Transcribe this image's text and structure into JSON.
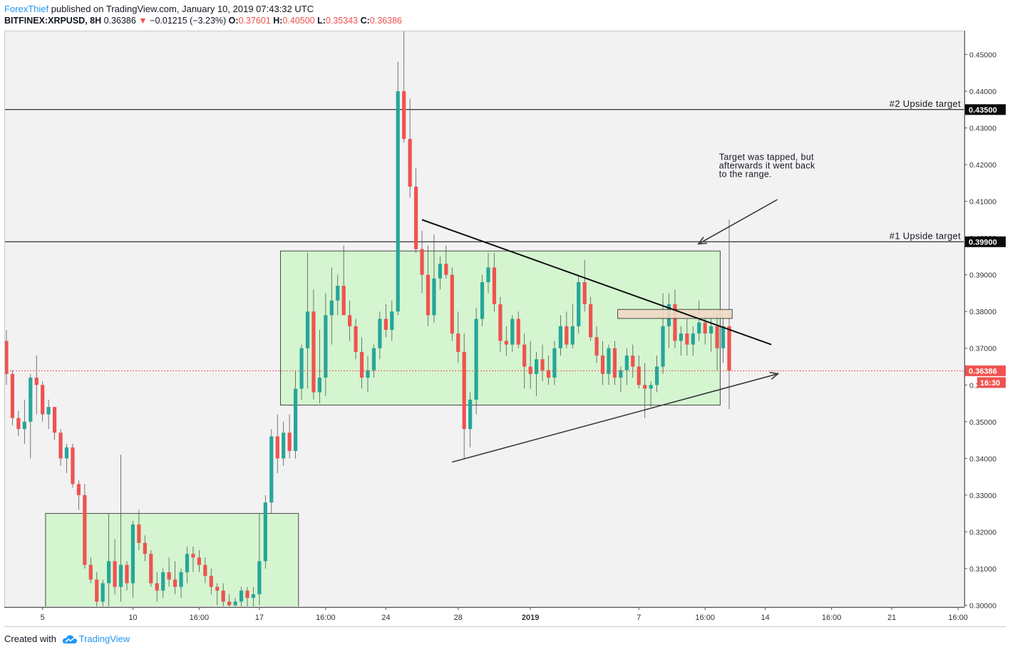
{
  "header": {
    "author": "ForexThief",
    "published_text": "published on TradingView.com, January 10, 2019 07:43:32 UTC",
    "symbol": "BITFINEX:XRPUSD, 8H",
    "last_price": "0.36386",
    "change_arrow": "▼",
    "change": "−0.01215 (−3.23%)",
    "o_label": "O:",
    "o_value": "0.37601",
    "h_label": "H:",
    "h_value": "0.40500",
    "l_label": "L:",
    "l_value": "0.35343",
    "c_label": "C:",
    "c_value": "0.36386"
  },
  "footer": {
    "created_with": "Created with",
    "brand": "TradingView",
    "logo_icon": "tradingview-cloud-icon"
  },
  "chart_data": {
    "type": "candlestick",
    "ylim": [
      0.2995,
      0.4565
    ],
    "y_ticks": [
      "0.45000",
      "0.44000",
      "0.43000",
      "0.42000",
      "0.41000",
      "0.40000",
      "0.39000",
      "0.38000",
      "0.37000",
      "0.36000",
      "0.35000",
      "0.34000",
      "0.33000",
      "0.32000",
      "0.31000",
      "0.30000"
    ],
    "x_ticks": [
      {
        "label": "5",
        "i": 6
      },
      {
        "label": "10",
        "i": 21
      },
      {
        "label": "16:00",
        "i": 32
      },
      {
        "label": "17",
        "i": 42
      },
      {
        "label": "16:00",
        "i": 53
      },
      {
        "label": "24",
        "i": 63
      },
      {
        "label": "28",
        "i": 75
      },
      {
        "label": "2019",
        "i": 87
      },
      {
        "label": "7",
        "i": 105
      },
      {
        "label": "16:00",
        "i": 116
      },
      {
        "label": "14",
        "i": 126
      },
      {
        "label": "16:00",
        "i": 137
      },
      {
        "label": "21",
        "i": 147
      },
      {
        "label": "16:00",
        "i": 158
      }
    ],
    "level_lines": [
      {
        "value": 0.435,
        "value_label": "0.43500",
        "label": "#2 Upside target"
      },
      {
        "value": 0.399,
        "value_label": "0.39900",
        "label": "#1 Upside target"
      }
    ],
    "current_price": {
      "value": 0.36386,
      "label": "0.36386",
      "countdown": "16:30"
    },
    "range_boxes": [
      {
        "i_start": 6.5,
        "i_end": 48.5,
        "top": 0.325,
        "bottom": 0.2995
      },
      {
        "i_start": 45.5,
        "i_end": 118.5,
        "top": 0.3965,
        "bottom": 0.3545
      }
    ],
    "zone_box": {
      "i_start": 101.5,
      "i_end": 120.5,
      "top": 0.38,
      "bottom": 0.3785
    },
    "trendlines": [
      {
        "from": [
          69,
          0.405
        ],
        "to": [
          127,
          0.371
        ],
        "arrow": false
      },
      {
        "from": [
          74,
          0.339
        ],
        "to": [
          128,
          0.363
        ],
        "arrow": true
      }
    ],
    "annotation": {
      "lines": [
        "Target was tapped, but",
        "afterwards it went back",
        "to the range."
      ],
      "text_at": [
        124,
        0.4205
      ],
      "arrow_from": [
        128,
        0.4105
      ],
      "arrow_to": [
        115,
        0.3985
      ]
    },
    "candles": [
      [
        0.372,
        0.375,
        0.36,
        0.363
      ],
      [
        0.363,
        0.364,
        0.349,
        0.351
      ],
      [
        0.351,
        0.353,
        0.346,
        0.348
      ],
      [
        0.348,
        0.356,
        0.344,
        0.35
      ],
      [
        0.35,
        0.363,
        0.34,
        0.362
      ],
      [
        0.362,
        0.368,
        0.352,
        0.36
      ],
      [
        0.36,
        0.361,
        0.35,
        0.352
      ],
      [
        0.352,
        0.356,
        0.348,
        0.354
      ],
      [
        0.354,
        0.354,
        0.345,
        0.347
      ],
      [
        0.347,
        0.348,
        0.338,
        0.34
      ],
      [
        0.34,
        0.344,
        0.336,
        0.343
      ],
      [
        0.343,
        0.344,
        0.332,
        0.333
      ],
      [
        0.333,
        0.334,
        0.326,
        0.33
      ],
      [
        0.33,
        0.333,
        0.31,
        0.311
      ],
      [
        0.311,
        0.313,
        0.306,
        0.307
      ],
      [
        0.307,
        0.309,
        0.2995,
        0.301
      ],
      [
        0.301,
        0.307,
        0.2995,
        0.306
      ],
      [
        0.306,
        0.325,
        0.2995,
        0.312
      ],
      [
        0.312,
        0.318,
        0.303,
        0.305
      ],
      [
        0.305,
        0.341,
        0.301,
        0.311
      ],
      [
        0.311,
        0.312,
        0.304,
        0.306
      ],
      [
        0.306,
        0.323,
        0.302,
        0.322
      ],
      [
        0.322,
        0.326,
        0.315,
        0.317
      ],
      [
        0.317,
        0.319,
        0.312,
        0.314
      ],
      [
        0.314,
        0.315,
        0.305,
        0.306
      ],
      [
        0.306,
        0.309,
        0.301,
        0.304
      ],
      [
        0.304,
        0.31,
        0.302,
        0.309
      ],
      [
        0.309,
        0.313,
        0.305,
        0.307
      ],
      [
        0.307,
        0.312,
        0.303,
        0.305
      ],
      [
        0.305,
        0.31,
        0.302,
        0.309
      ],
      [
        0.309,
        0.316,
        0.306,
        0.314
      ],
      [
        0.314,
        0.316,
        0.309,
        0.313
      ],
      [
        0.313,
        0.315,
        0.309,
        0.311
      ],
      [
        0.311,
        0.313,
        0.306,
        0.308
      ],
      [
        0.308,
        0.31,
        0.303,
        0.305
      ],
      [
        0.305,
        0.306,
        0.3,
        0.304
      ],
      [
        0.304,
        0.306,
        0.2995,
        0.301
      ],
      [
        0.301,
        0.303,
        0.2995,
        0.3
      ],
      [
        0.3,
        0.302,
        0.2995,
        0.301
      ],
      [
        0.301,
        0.305,
        0.2995,
        0.304
      ],
      [
        0.304,
        0.305,
        0.2995,
        0.302
      ],
      [
        0.302,
        0.305,
        0.2995,
        0.303
      ],
      [
        0.303,
        0.325,
        0.3,
        0.312
      ],
      [
        0.312,
        0.33,
        0.31,
        0.328
      ],
      [
        0.328,
        0.348,
        0.325,
        0.346
      ],
      [
        0.346,
        0.352,
        0.336,
        0.34
      ],
      [
        0.34,
        0.35,
        0.338,
        0.347
      ],
      [
        0.347,
        0.352,
        0.34,
        0.342
      ],
      [
        0.342,
        0.364,
        0.34,
        0.359
      ],
      [
        0.359,
        0.371,
        0.356,
        0.37
      ],
      [
        0.37,
        0.396,
        0.359,
        0.38
      ],
      [
        0.38,
        0.386,
        0.356,
        0.358
      ],
      [
        0.358,
        0.375,
        0.355,
        0.362
      ],
      [
        0.362,
        0.385,
        0.357,
        0.379
      ],
      [
        0.379,
        0.392,
        0.371,
        0.383
      ],
      [
        0.383,
        0.39,
        0.379,
        0.387
      ],
      [
        0.387,
        0.398,
        0.379,
        0.379
      ],
      [
        0.379,
        0.383,
        0.372,
        0.376
      ],
      [
        0.376,
        0.378,
        0.367,
        0.369
      ],
      [
        0.369,
        0.373,
        0.359,
        0.362
      ],
      [
        0.362,
        0.368,
        0.358,
        0.364
      ],
      [
        0.364,
        0.371,
        0.362,
        0.37
      ],
      [
        0.37,
        0.38,
        0.367,
        0.378
      ],
      [
        0.378,
        0.382,
        0.373,
        0.375
      ],
      [
        0.375,
        0.383,
        0.372,
        0.38
      ],
      [
        0.38,
        0.448,
        0.379,
        0.44
      ],
      [
        0.44,
        0.457,
        0.426,
        0.427
      ],
      [
        0.427,
        0.438,
        0.411,
        0.414
      ],
      [
        0.414,
        0.419,
        0.396,
        0.397
      ],
      [
        0.397,
        0.402,
        0.385,
        0.39
      ],
      [
        0.39,
        0.398,
        0.376,
        0.379
      ],
      [
        0.379,
        0.401,
        0.377,
        0.389
      ],
      [
        0.389,
        0.395,
        0.386,
        0.393
      ],
      [
        0.393,
        0.398,
        0.389,
        0.39
      ],
      [
        0.39,
        0.392,
        0.372,
        0.374
      ],
      [
        0.374,
        0.38,
        0.366,
        0.369
      ],
      [
        0.369,
        0.374,
        0.34,
        0.348
      ],
      [
        0.348,
        0.358,
        0.343,
        0.356
      ],
      [
        0.356,
        0.381,
        0.352,
        0.378
      ],
      [
        0.378,
        0.39,
        0.376,
        0.388
      ],
      [
        0.388,
        0.396,
        0.385,
        0.392
      ],
      [
        0.392,
        0.396,
        0.38,
        0.382
      ],
      [
        0.382,
        0.384,
        0.369,
        0.372
      ],
      [
        0.372,
        0.376,
        0.368,
        0.371
      ],
      [
        0.371,
        0.379,
        0.369,
        0.378
      ],
      [
        0.378,
        0.38,
        0.37,
        0.371
      ],
      [
        0.371,
        0.374,
        0.359,
        0.365
      ],
      [
        0.365,
        0.372,
        0.359,
        0.363
      ],
      [
        0.363,
        0.369,
        0.357,
        0.367
      ],
      [
        0.367,
        0.371,
        0.361,
        0.364
      ],
      [
        0.364,
        0.368,
        0.36,
        0.362
      ],
      [
        0.362,
        0.372,
        0.36,
        0.37
      ],
      [
        0.37,
        0.379,
        0.368,
        0.376
      ],
      [
        0.376,
        0.38,
        0.37,
        0.371
      ],
      [
        0.371,
        0.382,
        0.37,
        0.376
      ],
      [
        0.376,
        0.39,
        0.374,
        0.388
      ],
      [
        0.388,
        0.394,
        0.38,
        0.382
      ],
      [
        0.382,
        0.384,
        0.372,
        0.373
      ],
      [
        0.373,
        0.376,
        0.366,
        0.368
      ],
      [
        0.368,
        0.372,
        0.36,
        0.363
      ],
      [
        0.363,
        0.371,
        0.36,
        0.37
      ],
      [
        0.37,
        0.372,
        0.36,
        0.362
      ],
      [
        0.362,
        0.365,
        0.358,
        0.364
      ],
      [
        0.364,
        0.37,
        0.36,
        0.368
      ],
      [
        0.368,
        0.371,
        0.362,
        0.365
      ],
      [
        0.365,
        0.368,
        0.359,
        0.36
      ],
      [
        0.36,
        0.366,
        0.351,
        0.359
      ],
      [
        0.359,
        0.361,
        0.354,
        0.36
      ],
      [
        0.36,
        0.368,
        0.358,
        0.365
      ],
      [
        0.365,
        0.385,
        0.363,
        0.376
      ],
      [
        0.376,
        0.385,
        0.37,
        0.382
      ],
      [
        0.382,
        0.386,
        0.37,
        0.372
      ],
      [
        0.372,
        0.376,
        0.368,
        0.374
      ],
      [
        0.374,
        0.378,
        0.368,
        0.371
      ],
      [
        0.371,
        0.376,
        0.368,
        0.374
      ],
      [
        0.374,
        0.383,
        0.372,
        0.377
      ],
      [
        0.377,
        0.379,
        0.371,
        0.374
      ],
      [
        0.374,
        0.378,
        0.369,
        0.376
      ],
      [
        0.376,
        0.38,
        0.364,
        0.37
      ],
      [
        0.37,
        0.379,
        0.366,
        0.376
      ],
      [
        0.376,
        0.405,
        0.3534,
        0.3639
      ]
    ]
  }
}
